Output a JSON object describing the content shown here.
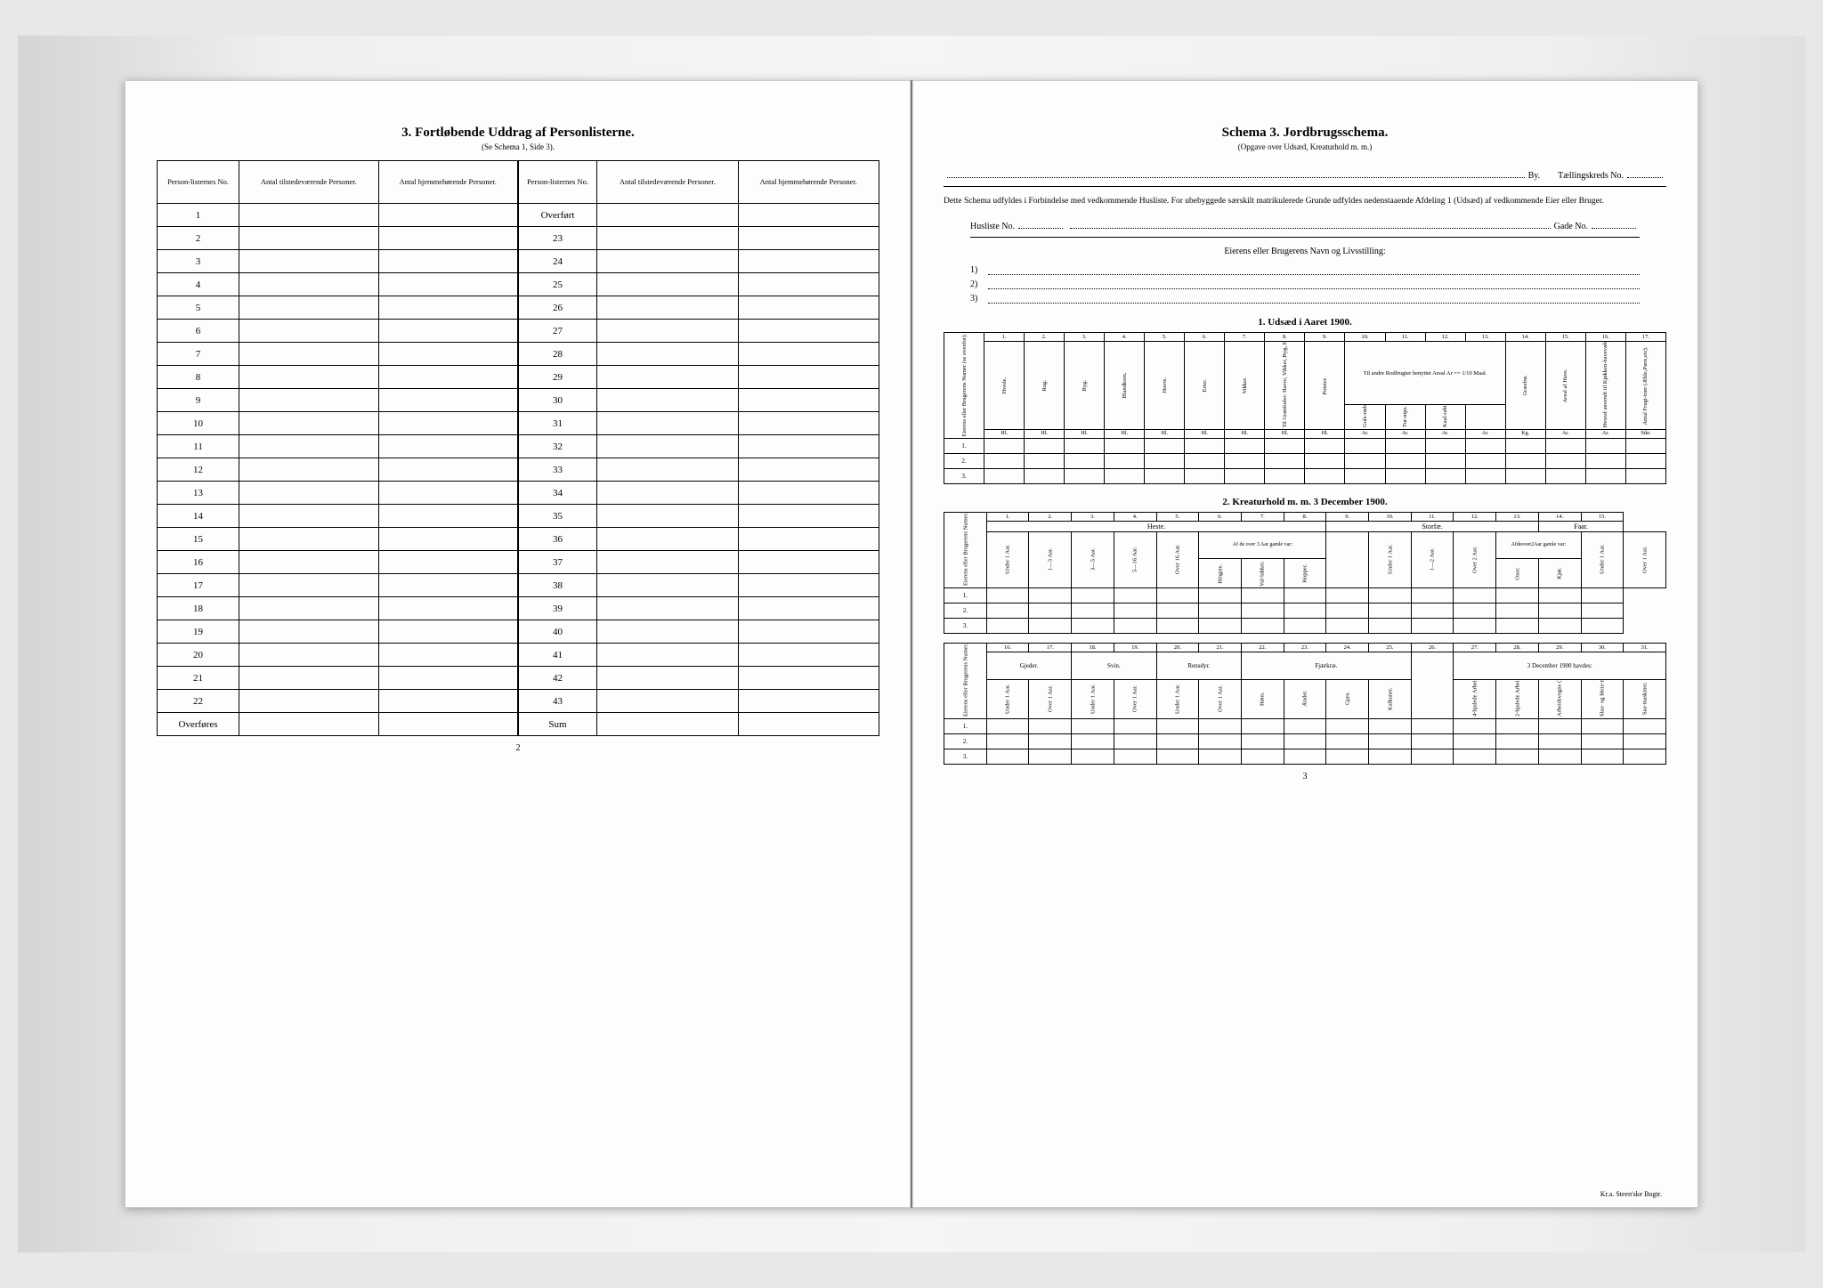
{
  "left": {
    "title": "3.  Fortløbende Uddrag af Personlisterne.",
    "subtitle": "(Se Schema 1, Side 3).",
    "headers": [
      "Person-listernes No.",
      "Antal tilstedeværende Personer.",
      "Antal hjemmehørende Personer."
    ],
    "rowsA": [
      "1",
      "2",
      "3",
      "4",
      "5",
      "6",
      "7",
      "8",
      "9",
      "10",
      "11",
      "12",
      "13",
      "14",
      "15",
      "16",
      "17",
      "18",
      "19",
      "20",
      "21",
      "22"
    ],
    "overfores": "Overføres",
    "overfort": "Overført",
    "rowsB": [
      "23",
      "24",
      "25",
      "26",
      "27",
      "28",
      "29",
      "30",
      "31",
      "32",
      "33",
      "34",
      "35",
      "36",
      "37",
      "38",
      "39",
      "40",
      "41",
      "42",
      "43"
    ],
    "sum": "Sum",
    "pageNum": "2"
  },
  "right": {
    "title": "Schema 3.  Jordbrugsschema.",
    "subtitle": "(Opgave over Udsæd, Kreaturhold m. m.)",
    "byLabel": "By.",
    "tkLabel": "Tællingskreds No.",
    "instruction": "Dette Schema udfyldes i Forbindelse med vedkommende Husliste. For ubebyggede særskilt matrikulerede Grunde udfyldes nedenstaaende Afdeling 1 (Udsæd) af vedkommende Eier eller Bruger.",
    "huslisteLabel": "Husliste No.",
    "gadeLabel": "Gade No.",
    "ownerTitle": "Eierens eller Brugerens Navn og Livsstilling:",
    "ownerNums": [
      "1)",
      "2)",
      "3)"
    ],
    "section1": "1.  Udsæd i Aaret 1900.",
    "t1": {
      "rowLabel": "Eierens eller Brugerens Numer (se ovenfor).",
      "cols": [
        "1.",
        "2.",
        "3.",
        "4.",
        "5.",
        "6.",
        "7.",
        "8.",
        "9.",
        "10.",
        "11.",
        "12.",
        "13.",
        "14.",
        "15.",
        "16.",
        "17."
      ],
      "heads": [
        "Hvede.",
        "Rug.",
        "Byg.",
        "Blandkorn.",
        "Havre.",
        "Erter.",
        "Vikker.",
        "Til Grønfoder: Havre, Vikker, Byg, Erter o. l. i Blanding.",
        "Poteter.",
        "",
        "",
        "",
        "",
        "Græsfrø.",
        "Areal af Have.",
        "Hvoraf anvendt til Kjøkken-havevækster.",
        "Antal Frugt-trær (Æble,Pære,etc)."
      ],
      "group9_13": "Til andre Rodfrugter benyttet Areal Ar == 1/10 Maal.",
      "sub9_13": [
        "Gule-rødder.",
        "Tur-nips.",
        "Kaal-rabi.",
        "",
        ""
      ],
      "units": [
        "Hl.",
        "Hl.",
        "Hl.",
        "Hl.",
        "Hl.",
        "Hl.",
        "Hl.",
        "Hl.",
        "Hl.",
        "Ar.",
        "Ar.",
        "Ar.",
        "Ar.",
        "Kg.",
        "Ar.",
        "Ar.",
        "Stkr."
      ],
      "rows": [
        "1.",
        "2.",
        "3."
      ]
    },
    "section2": "2.  Kreaturhold m. m. 3 December 1900.",
    "t2": {
      "rowLabel": "Eierens eller Brugerens Numer.",
      "cols": [
        "1.",
        "2.",
        "3.",
        "4.",
        "5.",
        "6.",
        "7.",
        "8.",
        "9.",
        "10.",
        "11.",
        "12.",
        "13.",
        "14.",
        "15."
      ],
      "group1": "Heste.",
      "group2": "Storfæ.",
      "group3": "Faar.",
      "heads1": [
        "Under 1 Aar.",
        "1—3 Aar.",
        "3—5 Aar.",
        "5—16 Aar.",
        "Over 16 Aar.",
        "Af de over 3 Aar gamle var:",
        "",
        "",
        ""
      ],
      "sub1": [
        "",
        "",
        "",
        "",
        "",
        "Hingste.",
        "Val-lakker.",
        "Hopper.",
        ""
      ],
      "heads2": [
        "Under 1 Aar.",
        "1—2 Aar.",
        "Over 2 Aar.",
        "Afdeover2Aar gamle var:",
        ""
      ],
      "sub2": [
        "",
        "",
        "",
        "Oxer.",
        "Kjør."
      ],
      "heads3": [
        "Under 1 Aar.",
        "Over 1 Aar."
      ],
      "rows": [
        "1.",
        "2.",
        "3."
      ]
    },
    "t3": {
      "rowLabel": "Eierens eller Brugerens Numer.",
      "cols": [
        "16.",
        "17.",
        "18.",
        "19.",
        "20.",
        "21.",
        "22.",
        "23.",
        "24.",
        "25.",
        "26.",
        "27.",
        "28.",
        "29.",
        "30.",
        "31."
      ],
      "group1": "Gjeder.",
      "group2": "Svin.",
      "group3": "Rensdyr.",
      "group4": "Fjærkræ.",
      "group5": "3 December 1900 havdes:",
      "heads": [
        "Under 1 Aar.",
        "Over 1 Aar.",
        "Under 1 Aar.",
        "Over 1 Aar.",
        "Under 1 Aar.",
        "Over 1 Aar.",
        "Høns.",
        "Ænder.",
        "Gjæs.",
        "Kalkuner.",
        "Bikuber.",
        "4-hjulede Arbeids-vogne.",
        "2-hjulede Arbeids-kjærrer.",
        "Arbeidsvogne (Herogne ikke medregnet).",
        "Slaa- og Meie-maskiner.",
        "Saa-maskiner."
      ],
      "rows": [
        "1.",
        "2.",
        "3."
      ]
    },
    "pageNum": "3",
    "printer": "Kr.a.  Steen'ske Bogtr."
  }
}
